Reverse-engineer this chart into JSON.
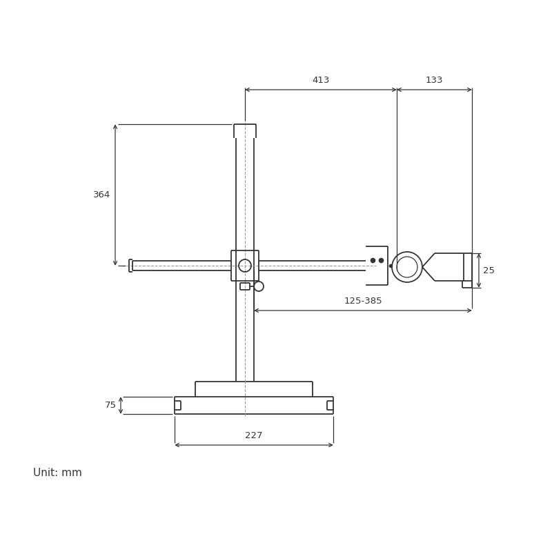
{
  "bg_color": "#ffffff",
  "line_color": "#333333",
  "dim_color": "#333333",
  "dim_line_color": "#333333",
  "dimensions": {
    "dim_413_label": "413",
    "dim_133_label": "133",
    "dim_364_label": "364",
    "dim_25_label": "25",
    "dim_75_label": "75",
    "dim_227_label": "227",
    "dim_125_385_label": "125-385"
  },
  "unit_label": "Unit: mm",
  "figsize": [
    8.0,
    8.0
  ],
  "dpi": 100
}
